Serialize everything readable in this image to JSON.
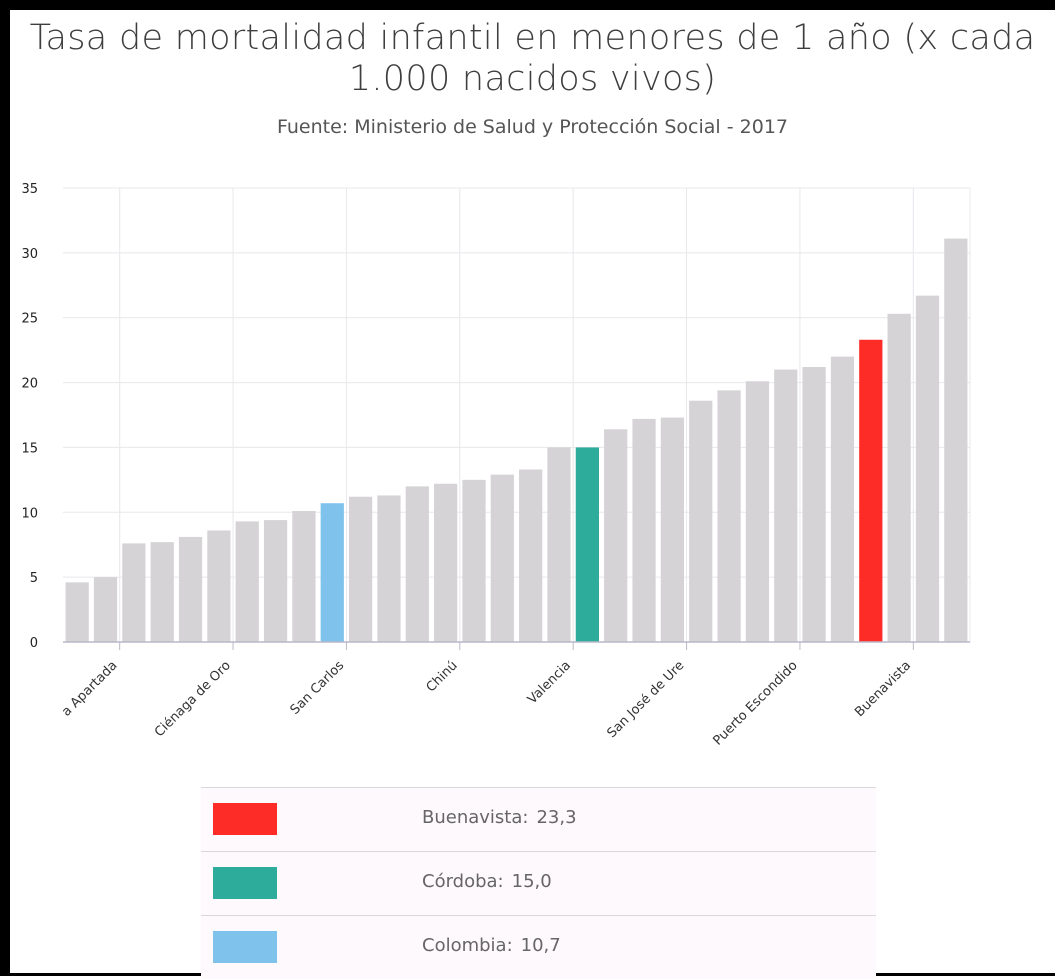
{
  "chart_data": {
    "type": "bar",
    "title": "Tasa de mortalidad infantil en menores de 1 año (x cada 1.000 nacidos vivos)",
    "subtitle": "Fuente: Ministerio de Salud y Protección Social - 2017",
    "ylim": [
      0,
      35
    ],
    "yticks": [
      0,
      5,
      10,
      15,
      20,
      25,
      30,
      35
    ],
    "grid": true,
    "xtick_labels": [
      "a Apartada",
      "Ciénaga de Oro",
      "San Carlos",
      "Chinú",
      "Valencia",
      "San José de Ure",
      "Puerto Escondido",
      "Buenavista"
    ],
    "xtick_positions": [
      1,
      5,
      9,
      13,
      17,
      21,
      25,
      29
    ],
    "values": [
      4.6,
      5.0,
      7.6,
      7.7,
      8.1,
      8.6,
      9.3,
      9.4,
      10.1,
      10.7,
      11.2,
      11.3,
      12.0,
      12.2,
      12.5,
      12.9,
      13.3,
      15.0,
      15.0,
      16.4,
      17.2,
      17.3,
      18.6,
      19.4,
      20.1,
      21.0,
      21.2,
      22.0,
      23.3,
      25.3,
      26.7,
      31.1
    ],
    "highlights": [
      {
        "index": 9,
        "color": "#7fc3ec"
      },
      {
        "index": 18,
        "color": "#2dab9b"
      },
      {
        "index": 28,
        "color": "#fd2c26"
      }
    ],
    "default_color": "#d6d3d6"
  },
  "legend": [
    {
      "label": "Buenavista:",
      "value": "23,3",
      "color": "#fd2c26"
    },
    {
      "label": "Córdoba:",
      "value": "15,0",
      "color": "#2dab9b"
    },
    {
      "label": "Colombia:",
      "value": "10,7",
      "color": "#7fc3ec"
    }
  ]
}
